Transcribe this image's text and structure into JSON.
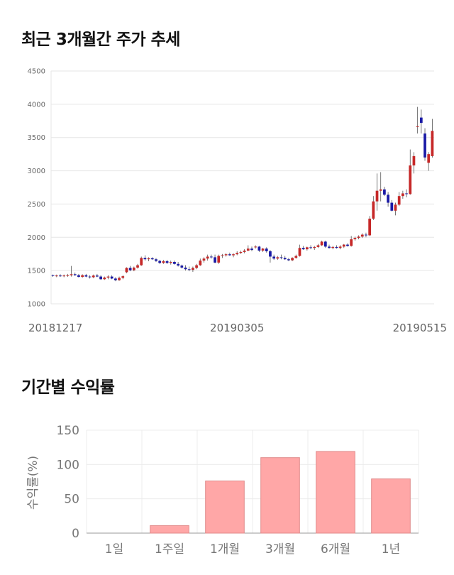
{
  "sections": {
    "price_title": "최근 3개월간 주가 추세",
    "returns_title": "기간별 수익률"
  },
  "colors": {
    "up": "#c62828",
    "down": "#1a1aa6",
    "bar": "#ffa7a7",
    "bar_stroke": "#e08a8a",
    "grid": "#e6e6e6"
  },
  "chart_data": [
    {
      "type": "candlestick",
      "title": "최근 3개월간 주가 추세",
      "ylim": [
        1000,
        4500
      ],
      "yticks": [
        1000,
        1500,
        2000,
        2500,
        3000,
        3500,
        4000,
        4500
      ],
      "xtick_labels": [
        "20181217",
        "20190305",
        "20190515"
      ],
      "xtick_indices": [
        0,
        50,
        98
      ],
      "grid": true,
      "candles": [
        [
          1430,
          1440,
          1405,
          1420
        ],
        [
          1420,
          1440,
          1400,
          1425
        ],
        [
          1425,
          1445,
          1405,
          1415
        ],
        [
          1415,
          1440,
          1400,
          1425
        ],
        [
          1425,
          1450,
          1405,
          1430
        ],
        [
          1430,
          1570,
          1410,
          1445
        ],
        [
          1445,
          1470,
          1420,
          1430
        ],
        [
          1430,
          1450,
          1395,
          1405
        ],
        [
          1405,
          1445,
          1390,
          1430
        ],
        [
          1430,
          1450,
          1400,
          1410
        ],
        [
          1410,
          1430,
          1380,
          1400
        ],
        [
          1400,
          1440,
          1385,
          1425
        ],
        [
          1425,
          1450,
          1400,
          1410
        ],
        [
          1410,
          1430,
          1360,
          1370
        ],
        [
          1370,
          1410,
          1360,
          1395
        ],
        [
          1395,
          1430,
          1370,
          1410
        ],
        [
          1410,
          1430,
          1370,
          1380
        ],
        [
          1380,
          1400,
          1340,
          1355
        ],
        [
          1355,
          1410,
          1345,
          1390
        ],
        [
          1390,
          1430,
          1370,
          1415
        ],
        [
          1475,
          1550,
          1460,
          1540
        ],
        [
          1540,
          1570,
          1490,
          1505
        ],
        [
          1505,
          1560,
          1490,
          1545
        ],
        [
          1545,
          1600,
          1530,
          1580
        ],
        [
          1580,
          1710,
          1570,
          1690
        ],
        [
          1690,
          1730,
          1650,
          1670
        ],
        [
          1670,
          1700,
          1640,
          1685
        ],
        [
          1685,
          1700,
          1660,
          1670
        ],
        [
          1670,
          1690,
          1630,
          1645
        ],
        [
          1645,
          1660,
          1600,
          1615
        ],
        [
          1615,
          1660,
          1600,
          1640
        ],
        [
          1640,
          1660,
          1600,
          1615
        ],
        [
          1615,
          1650,
          1590,
          1630
        ],
        [
          1630,
          1650,
          1590,
          1600
        ],
        [
          1600,
          1630,
          1560,
          1575
        ],
        [
          1575,
          1590,
          1530,
          1545
        ],
        [
          1545,
          1580,
          1500,
          1520
        ],
        [
          1520,
          1560,
          1490,
          1510
        ],
        [
          1510,
          1560,
          1480,
          1540
        ],
        [
          1540,
          1600,
          1520,
          1580
        ],
        [
          1580,
          1680,
          1570,
          1650
        ],
        [
          1650,
          1700,
          1620,
          1680
        ],
        [
          1680,
          1740,
          1650,
          1710
        ],
        [
          1710,
          1740,
          1680,
          1700
        ],
        [
          1700,
          1740,
          1610,
          1620
        ],
        [
          1620,
          1740,
          1600,
          1720
        ],
        [
          1720,
          1750,
          1690,
          1730
        ],
        [
          1730,
          1760,
          1710,
          1745
        ],
        [
          1745,
          1770,
          1720,
          1730
        ],
        [
          1730,
          1760,
          1700,
          1745
        ],
        [
          1745,
          1790,
          1730,
          1765
        ],
        [
          1765,
          1800,
          1750,
          1780
        ],
        [
          1780,
          1820,
          1760,
          1800
        ],
        [
          1800,
          1880,
          1790,
          1830
        ],
        [
          1830,
          1860,
          1790,
          1810
        ],
        [
          1850,
          1880,
          1830,
          1860
        ],
        [
          1860,
          1870,
          1780,
          1800
        ],
        [
          1800,
          1840,
          1780,
          1830
        ],
        [
          1830,
          1850,
          1770,
          1790
        ],
        [
          1790,
          1810,
          1620,
          1710
        ],
        [
          1710,
          1740,
          1660,
          1680
        ],
        [
          1680,
          1720,
          1660,
          1700
        ],
        [
          1700,
          1740,
          1670,
          1690
        ],
        [
          1690,
          1720,
          1660,
          1670
        ],
        [
          1670,
          1690,
          1640,
          1655
        ],
        [
          1655,
          1700,
          1640,
          1690
        ],
        [
          1690,
          1740,
          1680,
          1720
        ],
        [
          1720,
          1890,
          1710,
          1840
        ],
        [
          1840,
          1870,
          1810,
          1820
        ],
        [
          1820,
          1860,
          1800,
          1850
        ],
        [
          1850,
          1880,
          1820,
          1840
        ],
        [
          1840,
          1870,
          1810,
          1855
        ],
        [
          1855,
          1900,
          1840,
          1880
        ],
        [
          1880,
          1950,
          1870,
          1935
        ],
        [
          1935,
          1950,
          1840,
          1860
        ],
        [
          1860,
          1890,
          1830,
          1840
        ],
        [
          1840,
          1870,
          1820,
          1855
        ],
        [
          1855,
          1880,
          1830,
          1840
        ],
        [
          1840,
          1880,
          1820,
          1860
        ],
        [
          1860,
          1900,
          1840,
          1890
        ],
        [
          1890,
          1910,
          1860,
          1870
        ],
        [
          1870,
          2020,
          1860,
          1970
        ],
        [
          1970,
          2010,
          1950,
          1990
        ],
        [
          1990,
          2030,
          1970,
          2010
        ],
        [
          2010,
          2060,
          1990,
          2040
        ],
        [
          2040,
          2070,
          2000,
          2030
        ],
        [
          2030,
          2320,
          2020,
          2280
        ],
        [
          2280,
          2620,
          2260,
          2540
        ],
        [
          2540,
          2960,
          2400,
          2700
        ],
        [
          2700,
          2980,
          2540,
          2720
        ],
        [
          2720,
          2760,
          2620,
          2640
        ],
        [
          2640,
          2680,
          2460,
          2520
        ],
        [
          2520,
          2560,
          2390,
          2400
        ],
        [
          2400,
          2520,
          2330,
          2490
        ],
        [
          2490,
          2680,
          2470,
          2620
        ],
        [
          2620,
          2700,
          2580,
          2660
        ],
        [
          2660,
          2720,
          2600,
          2650
        ],
        [
          2650,
          3320,
          2640,
          3080
        ],
        [
          3080,
          3280,
          2960,
          3220
        ],
        [
          3660,
          3960,
          3560,
          3670
        ],
        [
          3800,
          3920,
          3560,
          3720
        ],
        [
          3560,
          3640,
          3150,
          3200
        ],
        [
          3120,
          3280,
          3000,
          3250
        ],
        [
          3220,
          3780,
          3200,
          3600
        ]
      ]
    },
    {
      "type": "bar",
      "categories": [
        "1일",
        "1주일",
        "1개월",
        "3개월",
        "6개월",
        "1년"
      ],
      "values": [
        0,
        11,
        76,
        110,
        119,
        79
      ],
      "ylim": [
        0,
        150
      ],
      "yticks": [
        0,
        50,
        100,
        150
      ],
      "ylabel": "수익률(%)",
      "grid": true
    }
  ]
}
